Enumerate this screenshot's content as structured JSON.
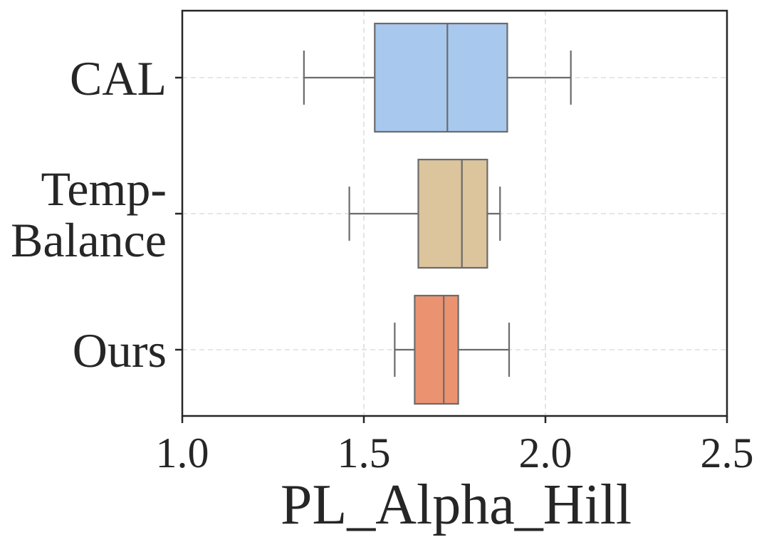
{
  "chart_data": {
    "type": "boxplot",
    "orientation": "horizontal",
    "title": "",
    "xlabel": "PL_Alpha_Hill",
    "ylabel": "",
    "xlim": [
      1.0,
      2.5
    ],
    "xticks": [
      1.0,
      1.5,
      2.0,
      2.5
    ],
    "xtick_labels": [
      "1.0",
      "1.5",
      "2.0",
      "2.5"
    ],
    "grid": true,
    "categories": [
      {
        "label_lines": [
          "CAL"
        ]
      },
      {
        "label_lines": [
          "Temp-",
          "Balance"
        ]
      },
      {
        "label_lines": [
          "Ours"
        ]
      }
    ],
    "series": [
      {
        "name": "CAL",
        "whisker_low": 1.335,
        "q1": 1.53,
        "median": 1.73,
        "q3": 1.895,
        "whisker_high": 2.07,
        "color": "#a8c8ee"
      },
      {
        "name": "Temp-Balance",
        "whisker_low": 1.46,
        "q1": 1.65,
        "median": 1.77,
        "q3": 1.84,
        "whisker_high": 1.875,
        "color": "#dcc49c"
      },
      {
        "name": "Ours",
        "whisker_low": 1.585,
        "q1": 1.64,
        "median": 1.72,
        "q3": 1.76,
        "whisker_high": 1.9,
        "color": "#eb9371"
      }
    ],
    "colors": {
      "axis": "#262626",
      "box_edge": "#6b6b6b",
      "grid": "#dddddd"
    }
  }
}
